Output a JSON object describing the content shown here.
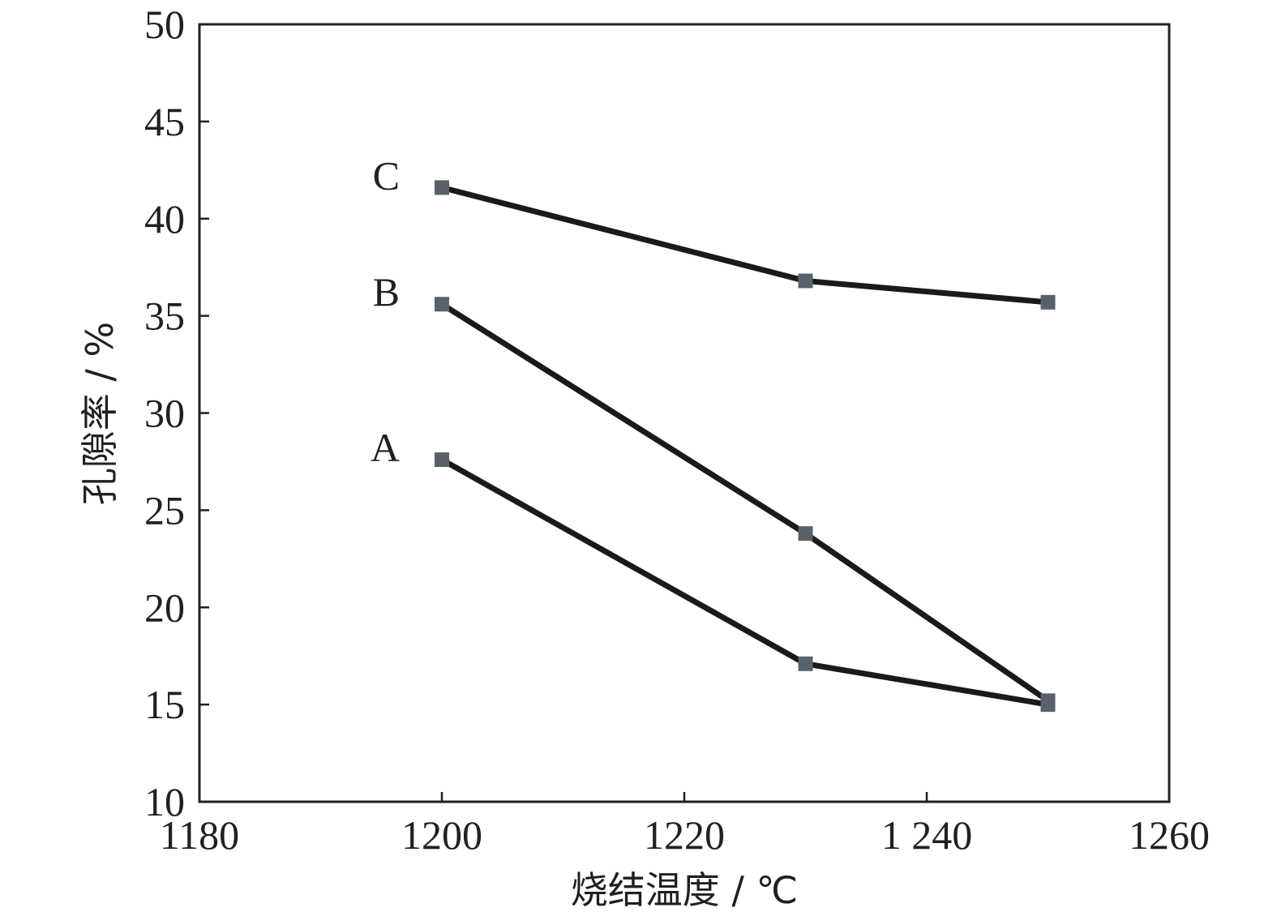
{
  "chart_data": {
    "type": "line",
    "xlabel": "烧结温度 / ℃",
    "ylabel": "孔隙率 / %",
    "xlim": [
      1180,
      1260
    ],
    "ylim": [
      10,
      50
    ],
    "x_ticks": [
      1180,
      1200,
      1220,
      1240,
      1260
    ],
    "x_tick_labels": [
      "1180",
      "1200",
      "1220",
      "1 240",
      "1260"
    ],
    "y_ticks": [
      10,
      15,
      20,
      25,
      30,
      35,
      40,
      45,
      50
    ],
    "y_tick_labels": [
      "10",
      "15",
      "20",
      "25",
      "30",
      "35",
      "40",
      "45",
      "50"
    ],
    "grid": false,
    "marker_color": "#59626a",
    "line_color": "#1a1a1a",
    "series": [
      {
        "name": "A",
        "x": [
          1200,
          1230,
          1250
        ],
        "y": [
          27.6,
          17.1,
          15.0
        ]
      },
      {
        "name": "B",
        "x": [
          1200,
          1230,
          1250
        ],
        "y": [
          35.6,
          23.8,
          15.2
        ]
      },
      {
        "name": "C",
        "x": [
          1200,
          1230,
          1250
        ],
        "y": [
          41.6,
          36.8,
          35.7
        ]
      }
    ]
  }
}
